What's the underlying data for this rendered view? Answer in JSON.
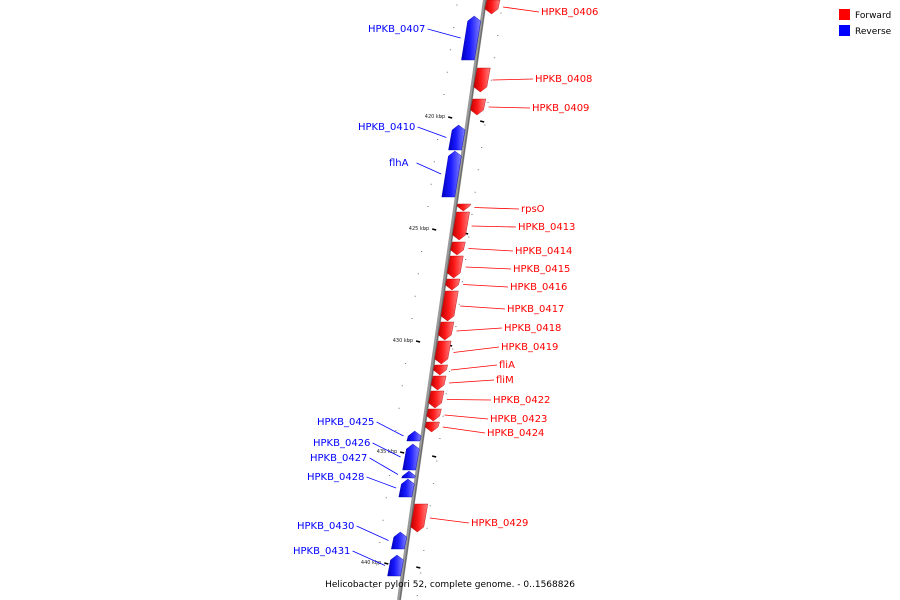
{
  "caption": "Helicobacter pylori 52, complete genome. - 0..1568826",
  "colors": {
    "forward": "#ff0000",
    "reverse": "#0000ff",
    "backbone": "#888888"
  },
  "legend": [
    {
      "key": "forward",
      "label": "Forward"
    },
    {
      "key": "reverse",
      "label": "Reverse"
    }
  ],
  "ticks": [
    {
      "label": "420 kbp"
    },
    {
      "label": "425 kbp"
    },
    {
      "label": "430 kbp"
    },
    {
      "label": "435 kbp"
    },
    {
      "label": "440 kbp"
    }
  ],
  "genes": [
    {
      "name": "HPKB_0406",
      "strand": "forward"
    },
    {
      "name": "HPKB_0407",
      "strand": "reverse"
    },
    {
      "name": "HPKB_0408",
      "strand": "forward"
    },
    {
      "name": "HPKB_0409",
      "strand": "forward"
    },
    {
      "name": "HPKB_0410",
      "strand": "reverse"
    },
    {
      "name": "flhA",
      "strand": "reverse"
    },
    {
      "name": "rpsO",
      "strand": "forward"
    },
    {
      "name": "HPKB_0413",
      "strand": "forward"
    },
    {
      "name": "HPKB_0414",
      "strand": "forward"
    },
    {
      "name": "HPKB_0415",
      "strand": "forward"
    },
    {
      "name": "HPKB_0416",
      "strand": "forward"
    },
    {
      "name": "HPKB_0417",
      "strand": "forward"
    },
    {
      "name": "HPKB_0418",
      "strand": "forward"
    },
    {
      "name": "HPKB_0419",
      "strand": "forward"
    },
    {
      "name": "fliA",
      "strand": "forward"
    },
    {
      "name": "fliM",
      "strand": "forward"
    },
    {
      "name": "HPKB_0422",
      "strand": "forward"
    },
    {
      "name": "HPKB_0423",
      "strand": "forward"
    },
    {
      "name": "HPKB_0424",
      "strand": "forward"
    },
    {
      "name": "HPKB_0425",
      "strand": "reverse"
    },
    {
      "name": "HPKB_0426",
      "strand": "reverse"
    },
    {
      "name": "HPKB_0427",
      "strand": "reverse"
    },
    {
      "name": "HPKB_0428",
      "strand": "reverse"
    },
    {
      "name": "HPKB_0429",
      "strand": "forward"
    },
    {
      "name": "HPKB_0430",
      "strand": "reverse"
    },
    {
      "name": "HPKB_0431",
      "strand": "reverse"
    }
  ]
}
